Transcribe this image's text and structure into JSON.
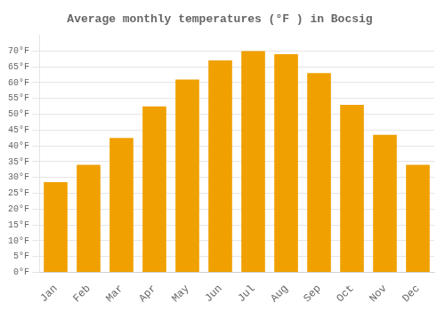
{
  "chart_data": {
    "type": "bar",
    "title": "Average monthly temperatures (°F ) in Bocsig",
    "categories": [
      "Jan",
      "Feb",
      "Mar",
      "Apr",
      "May",
      "Jun",
      "Jul",
      "Aug",
      "Sep",
      "Oct",
      "Nov",
      "Dec"
    ],
    "values": [
      28.5,
      34.0,
      42.5,
      52.5,
      61.0,
      67.0,
      70.0,
      69.0,
      63.0,
      53.0,
      43.5,
      34.0
    ],
    "color": "#F0A000",
    "ylim": [
      0,
      75
    ],
    "yticks": [
      {
        "value": 0,
        "label": "0°F"
      },
      {
        "value": 5,
        "label": "5°F"
      },
      {
        "value": 10,
        "label": "10°F"
      },
      {
        "value": 15,
        "label": "15°F"
      },
      {
        "value": 20,
        "label": "20°F"
      },
      {
        "value": 25,
        "label": "25°F"
      },
      {
        "value": 30,
        "label": "30°F"
      },
      {
        "value": 35,
        "label": "35°F"
      },
      {
        "value": 40,
        "label": "40°F"
      },
      {
        "value": 45,
        "label": "45°F"
      },
      {
        "value": 50,
        "label": "50°F"
      },
      {
        "value": 55,
        "label": "55°F"
      },
      {
        "value": 60,
        "label": "60°F"
      },
      {
        "value": 65,
        "label": "65°F"
      },
      {
        "value": 70,
        "label": "70°F"
      }
    ],
    "grid": true
  }
}
